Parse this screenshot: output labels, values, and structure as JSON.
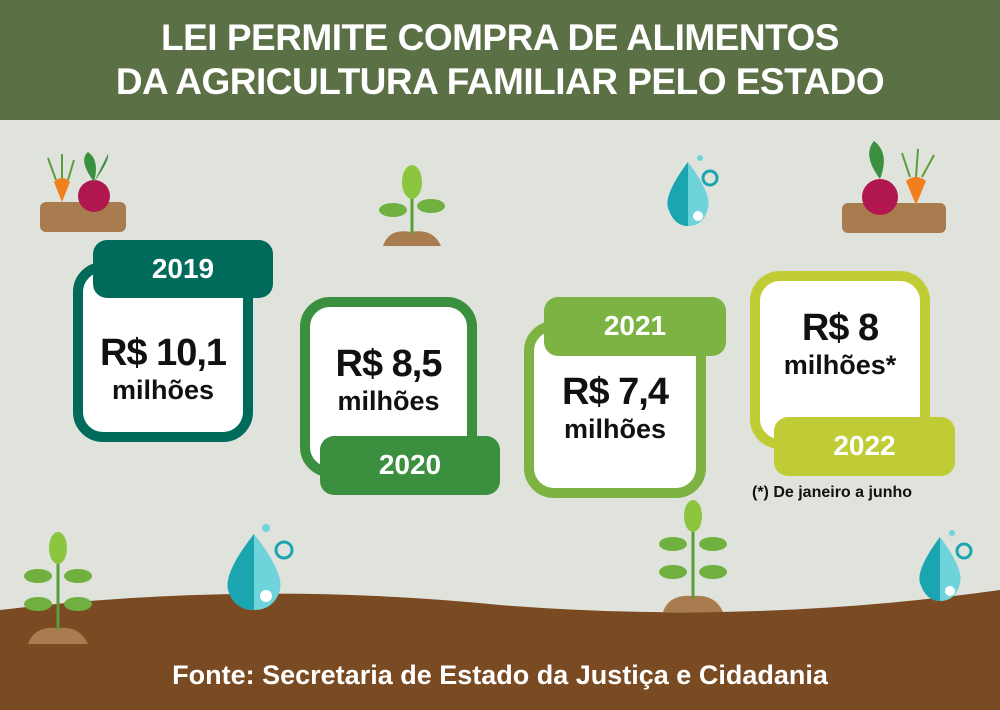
{
  "header": {
    "line1": "LEI PERMITE COMPRA DE ALIMENTOS",
    "line2": "DA AGRICULTURA FAMILIAR PELO ESTADO"
  },
  "entries": [
    {
      "year": "2019",
      "value": "R$ 10,1",
      "unit": "milhões",
      "color": "#006b5a"
    },
    {
      "year": "2020",
      "value": "R$ 8,5",
      "unit": "milhões",
      "color": "#3a903f"
    },
    {
      "year": "2021",
      "value": "R$ 7,4",
      "unit": "milhões",
      "color": "#7cb342"
    },
    {
      "year": "2022",
      "value": "R$ 8",
      "unit": "milhões*",
      "color": "#c0cc35"
    }
  ],
  "note": "(*) De janeiro a junho",
  "footer": "Fonte: Secretaria de Estado da Justiça e Cidadania",
  "colors": {
    "header": "#5c7046",
    "background": "#e0e3dc",
    "soil": "#7a4a23"
  },
  "icons": [
    "vegetables-icon",
    "sprout-icon",
    "water-drop-icon"
  ]
}
